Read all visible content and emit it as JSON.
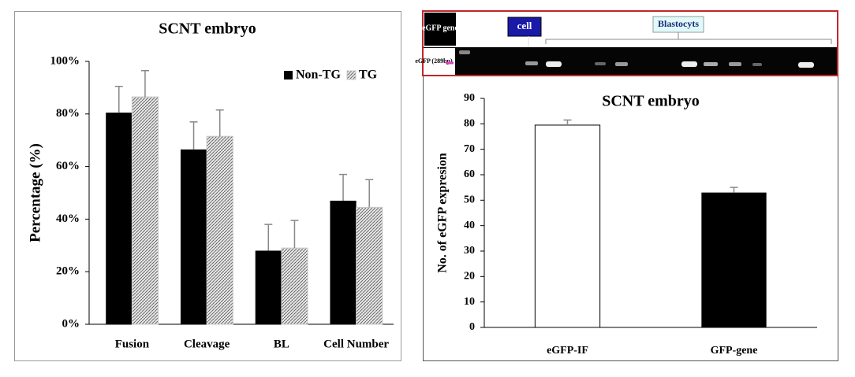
{
  "chart_data": [
    {
      "type": "bar",
      "title": "SCNT embryo",
      "ylabel": "Percentage (%)",
      "categories": [
        "Fusion",
        "Cleavage",
        "BL",
        "Cell Number"
      ],
      "series": [
        {
          "name": "Non-TG",
          "color": "#000000",
          "values": [
            80.5,
            66.5,
            28,
            47
          ],
          "errors": [
            10,
            10.5,
            10,
            10
          ]
        },
        {
          "name": "TG",
          "color": "#c8c8c8",
          "pattern": "hatch",
          "values": [
            86.5,
            71.5,
            29,
            44.5
          ],
          "errors": [
            10,
            10,
            10.5,
            10.5
          ]
        }
      ],
      "ylim": [
        0,
        100
      ],
      "yticks": [
        {
          "value": 0,
          "label": "0%"
        },
        {
          "value": 20,
          "label": "20%"
        },
        {
          "value": 40,
          "label": "40%"
        },
        {
          "value": 60,
          "label": "60%"
        },
        {
          "value": 80,
          "label": "80%"
        },
        {
          "value": 100,
          "label": "100%"
        }
      ],
      "legend": "upper right",
      "grid": false
    },
    {
      "type": "bar",
      "title": "SCNT embryo",
      "ylabel": "No. of eGFP expresion",
      "categories": [
        "eGFP-IF",
        "GFP-gene"
      ],
      "values": [
        79.5,
        53
      ],
      "errors": [
        2,
        2
      ],
      "colors": [
        "#ffffff",
        "#000000"
      ],
      "ylim": [
        0,
        90
      ],
      "yticks": [
        0,
        10,
        20,
        30,
        40,
        50,
        60,
        70,
        80,
        90
      ],
      "grid": false
    }
  ],
  "gel": {
    "marker_label": "eGFP gene",
    "lane_label": "cell",
    "group_label": "Blastocyts",
    "band_label": "eGFP (289bp)"
  }
}
